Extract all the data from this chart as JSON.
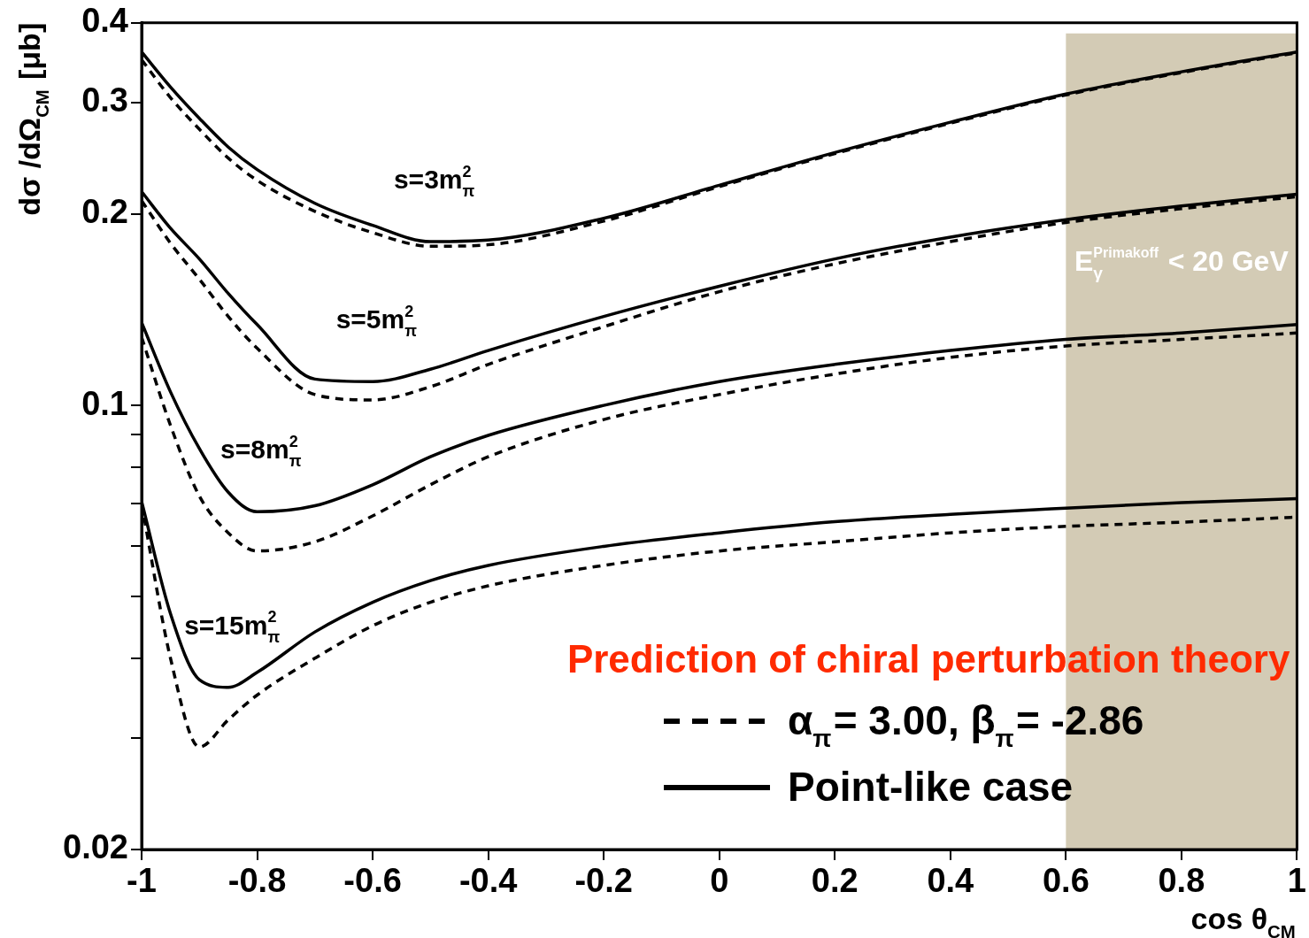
{
  "chart_data": {
    "type": "line",
    "xlabel": "cos θ$_{CM}$",
    "ylabel": "dσ /dΩ$_{CM}$ [μb]",
    "x": [
      -1,
      -0.95,
      -0.9,
      -0.85,
      -0.8,
      -0.7,
      -0.6,
      -0.5,
      -0.4,
      -0.2,
      0,
      0.2,
      0.4,
      0.6,
      0.8,
      1
    ],
    "series": [
      {
        "color": "#000000",
        "line_style": "solid",
        "values": [
          0.36,
          0.317,
          0.283,
          0.255,
          0.235,
          0.208,
          0.192,
          0.181,
          0.182,
          0.197,
          0.222,
          0.25,
          0.279,
          0.309,
          0.335,
          0.36
        ]
      },
      {
        "color": "#000000",
        "line_style": "dashed",
        "values": [
          0.35,
          0.305,
          0.272,
          0.245,
          0.226,
          0.202,
          0.187,
          0.178,
          0.179,
          0.195,
          0.221,
          0.249,
          0.278,
          0.308,
          0.334,
          0.359
        ]
      },
      {
        "color": "#000000",
        "line_style": "solid",
        "values": [
          0.217,
          0.19,
          0.17,
          0.15,
          0.134,
          0.11,
          0.109,
          0.114,
          0.122,
          0.138,
          0.154,
          0.17,
          0.184,
          0.196,
          0.206,
          0.215
        ]
      },
      {
        "color": "#000000",
        "line_style": "dashed",
        "values": [
          0.21,
          0.18,
          0.158,
          0.138,
          0.123,
          0.104,
          0.102,
          0.107,
          0.116,
          0.133,
          0.151,
          0.167,
          0.181,
          0.194,
          0.204,
          0.213
        ]
      },
      {
        "color": "#000000",
        "line_style": "solid",
        "values": [
          0.135,
          0.105,
          0.0855,
          0.073,
          0.068,
          0.0695,
          0.075,
          0.083,
          0.0897,
          0.1,
          0.109,
          0.116,
          0.122,
          0.127,
          0.13,
          0.134
        ]
      },
      {
        "color": "#000000",
        "line_style": "dashed",
        "values": [
          0.128,
          0.093,
          0.072,
          0.063,
          0.059,
          0.061,
          0.067,
          0.075,
          0.083,
          0.095,
          0.104,
          0.112,
          0.119,
          0.124,
          0.127,
          0.13
        ]
      },
      {
        "name": "Point-like case",
        "color": "#000000",
        "line_style": "solid",
        "values": [
          0.0706,
          0.047,
          0.037,
          0.036,
          0.038,
          0.044,
          0.049,
          0.053,
          0.056,
          0.06,
          0.063,
          0.0656,
          0.0674,
          0.0689,
          0.0703,
          0.0713
        ]
      },
      {
        "name": "α$_{π}$= 3.00, β$_{π}$= -2.86",
        "color": "#000000",
        "line_style": "dashed",
        "values": [
          0.07,
          0.04,
          0.029,
          0.032,
          0.035,
          0.04,
          0.045,
          0.049,
          0.052,
          0.056,
          0.059,
          0.061,
          0.063,
          0.0645,
          0.0655,
          0.0667
        ]
      }
    ],
    "log": "y",
    "xlim": [
      -1,
      1
    ],
    "ylim": [
      0.02,
      0.4
    ],
    "xticks": [
      -1,
      -0.8,
      -0.6,
      -0.4,
      -0.2,
      0,
      0.2,
      0.4,
      0.6,
      0.8,
      1
    ],
    "yticks": [
      0.02,
      {
        "value": 0.03,
        "label": null
      },
      {
        "value": 0.04,
        "label": null
      },
      {
        "value": 0.05,
        "label": null
      },
      {
        "value": 0.06,
        "label": null
      },
      {
        "value": 0.07,
        "label": null
      },
      {
        "value": 0.08,
        "label": null
      },
      {
        "value": 0.09,
        "label": null
      },
      0.1,
      0.2,
      0.3,
      0.4
    ],
    "bands": [
      {
        "axis": "x",
        "from": 0.6,
        "to": 1,
        "label": "E$_{γ}$$^{Primakoff}$ < 20 GeV",
        "color": "#d3cbb5"
      }
    ],
    "annotations": [
      "s=3m$_{π}$$^{2}$",
      "s=5m$_{π}$$^{2}$",
      "s=8m$_{π}$$^{2}$",
      "s=15m$_{π}$$^{2}$",
      "Prediction of chiral perturbation theory"
    ],
    "legend": "bottom right",
    "grid": false
  }
}
